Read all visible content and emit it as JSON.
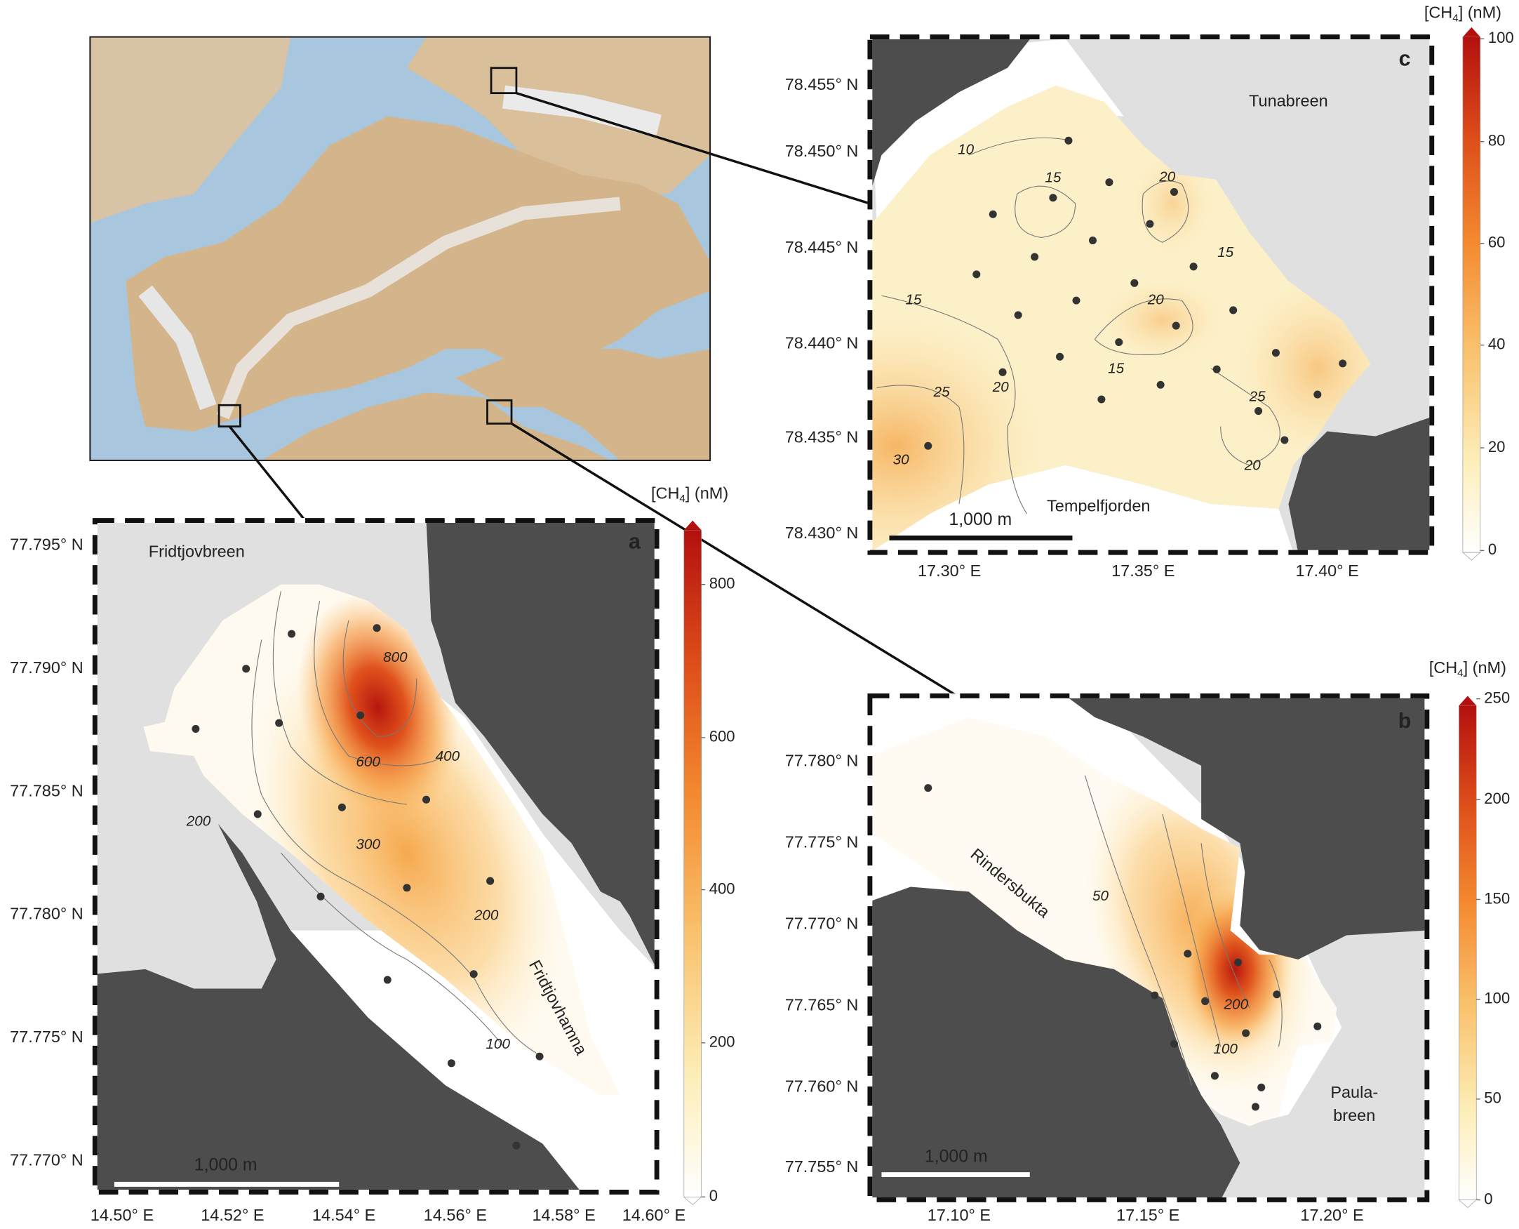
{
  "panels": [
    {
      "label": "c",
      "place_names": [
        "Tunabreen",
        "Tempelfjorden"
      ],
      "yticks": [
        "78.455° N",
        "78.450° N",
        "78.445° N",
        "78.440° N",
        "78.435° N",
        "78.430° N"
      ],
      "xticks": [
        "17.30° E",
        "17.35° E",
        "17.40° E"
      ],
      "contour_labels": [
        "10",
        "15",
        "20",
        "15",
        "15",
        "20",
        "15",
        "25",
        "20",
        "30",
        "25",
        "20"
      ],
      "scale_bar": "1,000 m",
      "colorbar": {
        "title": {
          "main": "[CH",
          "subscript": "4",
          "unit": "] (nM)"
        },
        "ticks": [
          "100",
          "80",
          "60",
          "40",
          "20",
          "0"
        ]
      }
    },
    {
      "label": "a",
      "place_names": [
        "Fridtjovbreen",
        "Fridtjovhamna"
      ],
      "yticks": [
        "77.795° N",
        "77.790° N",
        "77.785° N",
        "77.780° N",
        "77.775° N",
        "77.770° N"
      ],
      "xticks": [
        "14.50° E",
        "14.52° E",
        "14.54° E",
        "14.56° E",
        "14.58° E",
        "14.60° E"
      ],
      "contour_labels": [
        "800",
        "600",
        "400",
        "200",
        "300",
        "200",
        "100"
      ],
      "scale_bar": "1,000 m",
      "colorbar": {
        "title": {
          "main": "[CH",
          "subscript": "4",
          "unit": "] (nM)"
        },
        "ticks": [
          "800",
          "600",
          "400",
          "200",
          "0"
        ]
      }
    },
    {
      "label": "b",
      "place_names": [
        "Rindersbukta",
        "Paula-",
        "breen"
      ],
      "yticks": [
        "77.780° N",
        "77.775° N",
        "77.770° N",
        "77.765° N",
        "77.760° N",
        "77.755° N"
      ],
      "xticks": [
        "17.10° E",
        "17.15° E",
        "17.20° E"
      ],
      "contour_labels": [
        "50",
        "200",
        "100"
      ],
      "scale_bar": "1,000 m",
      "colorbar": {
        "title": {
          "main": "[CH",
          "subscript": "4",
          "unit": "] (nM)"
        },
        "ticks": [
          "250",
          "200",
          "150",
          "100",
          "50",
          "0"
        ]
      }
    }
  ]
}
